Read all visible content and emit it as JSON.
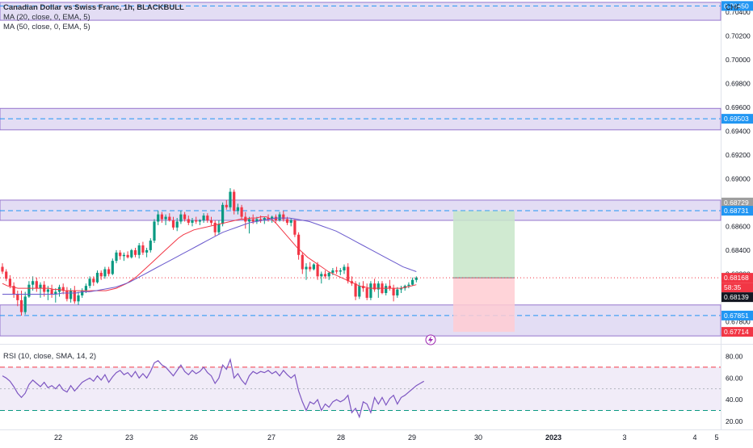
{
  "header": {
    "title": "Canadian Dollar vs Swiss Franc, 1h, BLACKBULL",
    "ma20_label": "MA (20, close, 0, EMA, 5)",
    "ma50_label": "MA (50, close, 0, EMA, 5)",
    "rsi_label": "RSI (10, close, SMA, 14, 2)",
    "currency": "CHF"
  },
  "colors": {
    "up": "#089981",
    "down": "#f23645",
    "ma20": "#f23645",
    "ma50": "#6a5acd",
    "zone_fill": "#d9d1f0",
    "zone_border": "#9575cd",
    "zone_dash": "#2196f3",
    "rsi_line": "#7e57c2",
    "rsi_band": "#ede7f6",
    "profit": "#c8e6c9",
    "loss": "#ffcdd2"
  },
  "price_axis": {
    "ticks": [
      "0.70400",
      "0.70200",
      "0.70000",
      "0.69800",
      "0.69600",
      "0.69400",
      "0.69200",
      "0.69000",
      "0.68800",
      "0.68600",
      "0.68400",
      "0.68200",
      "0.68000",
      "0.67800"
    ]
  },
  "price_badges": [
    {
      "text": "0.70450",
      "color": "#2196f3"
    },
    {
      "text": "0.69503",
      "color": "#2196f3"
    },
    {
      "text": "0.68729",
      "color": "#9e9e9e"
    },
    {
      "text": "0.68731",
      "color": "#2196f3"
    },
    {
      "text": "0.68168",
      "color": "#f23645"
    },
    {
      "text": "58:35",
      "color": "#f23645"
    },
    {
      "text": "0.68139",
      "color": "#131722"
    },
    {
      "text": "0.67851",
      "color": "#2196f3"
    },
    {
      "text": "0.67714",
      "color": "#f23645"
    }
  ],
  "rsi_axis": {
    "ticks": [
      "80.00",
      "60.00",
      "40.00",
      "20.00"
    ]
  },
  "time_axis": {
    "labels": [
      "22",
      "23",
      "26",
      "27",
      "28",
      "29",
      "30",
      "2023",
      "3",
      "4",
      "5"
    ]
  },
  "chart_data": [
    {
      "type": "candlestick",
      "title": "Canadian Dollar vs Swiss Franc, 1h, BLACKBULL",
      "ylim": [
        0.6762,
        0.705
      ],
      "candles": [
        [
          0.6826,
          0.6829,
          0.682,
          0.6822
        ],
        [
          0.6822,
          0.6824,
          0.6814,
          0.6816
        ],
        [
          0.6816,
          0.6819,
          0.6808,
          0.681
        ],
        [
          0.681,
          0.6813,
          0.68,
          0.6803
        ],
        [
          0.6803,
          0.6806,
          0.6793,
          0.6798
        ],
        [
          0.6798,
          0.6806,
          0.6785,
          0.6788
        ],
        [
          0.6788,
          0.6805,
          0.6786,
          0.6801
        ],
        [
          0.6801,
          0.6814,
          0.68,
          0.6811
        ],
        [
          0.6811,
          0.6818,
          0.6806,
          0.6814
        ],
        [
          0.6814,
          0.6817,
          0.6805,
          0.6808
        ],
        [
          0.6808,
          0.6813,
          0.68,
          0.6811
        ],
        [
          0.6811,
          0.6814,
          0.6801,
          0.6805
        ],
        [
          0.6805,
          0.681,
          0.6798,
          0.6807
        ],
        [
          0.6807,
          0.6811,
          0.68,
          0.6803
        ],
        [
          0.6803,
          0.6808,
          0.6796,
          0.6805
        ],
        [
          0.6805,
          0.6811,
          0.6801,
          0.6809
        ],
        [
          0.6809,
          0.6812,
          0.6803,
          0.6806
        ],
        [
          0.6806,
          0.6809,
          0.6797,
          0.6799
        ],
        [
          0.6799,
          0.6808,
          0.6796,
          0.6806
        ],
        [
          0.6806,
          0.681,
          0.6795,
          0.6797
        ],
        [
          0.6797,
          0.6805,
          0.6794,
          0.6802
        ],
        [
          0.6802,
          0.6808,
          0.68,
          0.6806
        ],
        [
          0.6806,
          0.6812,
          0.6804,
          0.681
        ],
        [
          0.681,
          0.6818,
          0.6808,
          0.6816
        ],
        [
          0.6816,
          0.6818,
          0.681,
          0.6813
        ],
        [
          0.6813,
          0.6823,
          0.6812,
          0.6821
        ],
        [
          0.6821,
          0.6823,
          0.6815,
          0.6818
        ],
        [
          0.6818,
          0.6826,
          0.6816,
          0.6824
        ],
        [
          0.6824,
          0.6826,
          0.6818,
          0.682
        ],
        [
          0.682,
          0.6833,
          0.6819,
          0.6831
        ],
        [
          0.6831,
          0.684,
          0.6829,
          0.6838
        ],
        [
          0.6838,
          0.684,
          0.6832,
          0.6835
        ],
        [
          0.6835,
          0.6838,
          0.6831,
          0.6836
        ],
        [
          0.6836,
          0.6839,
          0.6833,
          0.6834
        ],
        [
          0.6834,
          0.6841,
          0.6833,
          0.684
        ],
        [
          0.684,
          0.6842,
          0.6834,
          0.6836
        ],
        [
          0.6836,
          0.6846,
          0.6833,
          0.6844
        ],
        [
          0.6844,
          0.6847,
          0.6836,
          0.6838
        ],
        [
          0.6838,
          0.6842,
          0.6834,
          0.684
        ],
        [
          0.684,
          0.685,
          0.6838,
          0.6848
        ],
        [
          0.6848,
          0.6866,
          0.6846,
          0.6864
        ],
        [
          0.6864,
          0.6873,
          0.6861,
          0.687
        ],
        [
          0.687,
          0.6872,
          0.6863,
          0.6866
        ],
        [
          0.6866,
          0.687,
          0.6861,
          0.6868
        ],
        [
          0.6868,
          0.6871,
          0.6864,
          0.6865
        ],
        [
          0.6865,
          0.6868,
          0.6857,
          0.6859
        ],
        [
          0.6859,
          0.6867,
          0.6856,
          0.6864
        ],
        [
          0.6864,
          0.6873,
          0.6862,
          0.687
        ],
        [
          0.687,
          0.6872,
          0.6864,
          0.6866
        ],
        [
          0.6866,
          0.6869,
          0.6861,
          0.6863
        ],
        [
          0.6863,
          0.6867,
          0.686,
          0.6865
        ],
        [
          0.6865,
          0.6868,
          0.6862,
          0.6864
        ],
        [
          0.6864,
          0.6866,
          0.6861,
          0.6865
        ],
        [
          0.6865,
          0.6871,
          0.6863,
          0.6869
        ],
        [
          0.6869,
          0.6871,
          0.6863,
          0.6865
        ],
        [
          0.6865,
          0.6868,
          0.6861,
          0.6863
        ],
        [
          0.6863,
          0.6865,
          0.6852,
          0.6855
        ],
        [
          0.6855,
          0.6865,
          0.6853,
          0.6862
        ],
        [
          0.6862,
          0.688,
          0.686,
          0.6878
        ],
        [
          0.6878,
          0.6882,
          0.6874,
          0.6876
        ],
        [
          0.6876,
          0.6892,
          0.6874,
          0.6889
        ],
        [
          0.6889,
          0.6891,
          0.687,
          0.6873
        ],
        [
          0.6873,
          0.6879,
          0.687,
          0.6876
        ],
        [
          0.6876,
          0.6878,
          0.6866,
          0.6868
        ],
        [
          0.6868,
          0.6872,
          0.6858,
          0.6864
        ],
        [
          0.6864,
          0.6868,
          0.6854,
          0.6866
        ],
        [
          0.6866,
          0.687,
          0.6862,
          0.6864
        ],
        [
          0.6864,
          0.6868,
          0.6862,
          0.6866
        ],
        [
          0.6866,
          0.6869,
          0.6863,
          0.6865
        ],
        [
          0.6865,
          0.6868,
          0.6862,
          0.6867
        ],
        [
          0.6867,
          0.687,
          0.6864,
          0.6866
        ],
        [
          0.6866,
          0.6869,
          0.6863,
          0.6868
        ],
        [
          0.6868,
          0.687,
          0.6863,
          0.6865
        ],
        [
          0.6865,
          0.6872,
          0.6864,
          0.687
        ],
        [
          0.687,
          0.6873,
          0.6864,
          0.6866
        ],
        [
          0.6866,
          0.6868,
          0.6861,
          0.6863
        ],
        [
          0.6863,
          0.6867,
          0.686,
          0.6865
        ],
        [
          0.6865,
          0.6866,
          0.6851,
          0.6853
        ],
        [
          0.6853,
          0.6855,
          0.6832,
          0.6836
        ],
        [
          0.6836,
          0.6838,
          0.682,
          0.6824
        ],
        [
          0.6824,
          0.6829,
          0.6815,
          0.6826
        ],
        [
          0.6826,
          0.683,
          0.6822,
          0.6824
        ],
        [
          0.6824,
          0.6829,
          0.6823,
          0.6828
        ],
        [
          0.6828,
          0.683,
          0.6815,
          0.6818
        ],
        [
          0.6818,
          0.6822,
          0.6812,
          0.682
        ],
        [
          0.682,
          0.6823,
          0.6816,
          0.6818
        ],
        [
          0.6818,
          0.6822,
          0.6815,
          0.6821
        ],
        [
          0.6821,
          0.6825,
          0.6819,
          0.6823
        ],
        [
          0.6823,
          0.6826,
          0.682,
          0.6822
        ],
        [
          0.6822,
          0.6825,
          0.6819,
          0.6823
        ],
        [
          0.6823,
          0.6828,
          0.682,
          0.6826
        ],
        [
          0.6826,
          0.6829,
          0.6812,
          0.6814
        ],
        [
          0.6814,
          0.6818,
          0.681,
          0.6812
        ],
        [
          0.6812,
          0.6814,
          0.6798,
          0.6801
        ],
        [
          0.6801,
          0.6813,
          0.6799,
          0.681
        ],
        [
          0.681,
          0.6814,
          0.6805,
          0.6808
        ],
        [
          0.6808,
          0.6812,
          0.6798,
          0.68
        ],
        [
          0.68,
          0.6814,
          0.6798,
          0.6812
        ],
        [
          0.6812,
          0.6816,
          0.6805,
          0.6807
        ],
        [
          0.6807,
          0.6814,
          0.68,
          0.6812
        ],
        [
          0.6812,
          0.6814,
          0.6803,
          0.6804
        ],
        [
          0.6804,
          0.6812,
          0.6802,
          0.681
        ],
        [
          0.681,
          0.6815,
          0.6806,
          0.6808
        ],
        [
          0.6808,
          0.6811,
          0.6797,
          0.6802
        ],
        [
          0.6802,
          0.6809,
          0.68,
          0.6807
        ],
        [
          0.6807,
          0.681,
          0.6804,
          0.6808
        ],
        [
          0.6808,
          0.6811,
          0.6806,
          0.681
        ],
        [
          0.681,
          0.6813,
          0.6808,
          0.6811
        ],
        [
          0.6811,
          0.6817,
          0.681,
          0.6815
        ],
        [
          0.6815,
          0.6818,
          0.6813,
          0.6817
        ]
      ],
      "ma20": [
        0.6812,
        0.681,
        0.6809,
        0.6808,
        0.6808,
        0.6808,
        0.6808,
        0.6808,
        0.6808,
        0.6808,
        0.6807,
        0.6807,
        0.6806,
        0.6806,
        0.6806,
        0.6806,
        0.6806,
        0.6806,
        0.6806,
        0.6806,
        0.6806,
        0.6807,
        0.6808,
        0.681,
        0.6812,
        0.6815,
        0.6818,
        0.6822,
        0.6826,
        0.683,
        0.6834,
        0.6838,
        0.6842,
        0.6846,
        0.685,
        0.6853,
        0.6855,
        0.6857,
        0.6858,
        0.6859,
        0.686,
        0.6861,
        0.6862,
        0.6863,
        0.6864,
        0.6865,
        0.6866,
        0.6866,
        0.6867,
        0.6867,
        0.6868,
        0.6868,
        0.6866,
        0.6862,
        0.6857,
        0.6852,
        0.6847,
        0.6842,
        0.6838,
        0.6834,
        0.6831,
        0.6828,
        0.6825,
        0.6822,
        0.682,
        0.6818,
        0.6816,
        0.6814,
        0.6812,
        0.681,
        0.6809,
        0.6808,
        0.6808,
        0.6808,
        0.6808,
        0.6808,
        0.6808,
        0.6808,
        0.6809,
        0.681,
        0.6811
      ],
      "ma50": [
        0.6803,
        0.6803,
        0.6803,
        0.6803,
        0.6803,
        0.6803,
        0.6803,
        0.6803,
        0.6803,
        0.6804,
        0.6804,
        0.6804,
        0.6805,
        0.6805,
        0.6806,
        0.6807,
        0.6808,
        0.6809,
        0.6811,
        0.6813,
        0.6816,
        0.6819,
        0.6822,
        0.6825,
        0.6828,
        0.6831,
        0.6834,
        0.6837,
        0.684,
        0.6843,
        0.6846,
        0.6849,
        0.6852,
        0.6855,
        0.6857,
        0.6859,
        0.6861,
        0.6863,
        0.6864,
        0.6865,
        0.6866,
        0.6867,
        0.6867,
        0.6867,
        0.6866,
        0.6865,
        0.6864,
        0.6862,
        0.686,
        0.6858,
        0.6856,
        0.6853,
        0.685,
        0.6847,
        0.6844,
        0.6841,
        0.6838,
        0.6835,
        0.6832,
        0.6829,
        0.6826,
        0.6824,
        0.6822
      ],
      "support_resistance_zones": [
        {
          "top": 0.7048,
          "bottom": 0.7033,
          "level": 0.7045
        },
        {
          "top": 0.6959,
          "bottom": 0.6941,
          "level": 0.69503
        },
        {
          "top": 0.6882,
          "bottom": 0.6865,
          "level": 0.68731
        },
        {
          "top": 0.6794,
          "bottom": 0.6768,
          "level": 0.67851
        }
      ],
      "position": {
        "entry": 0.68168,
        "target": 0.68729,
        "stop": 0.67714
      },
      "current_price": 0.68168
    },
    {
      "type": "line",
      "title": "RSI (10, close, SMA, 14, 2)",
      "ylim": [
        14,
        90
      ],
      "upper_band": 70,
      "lower_band": 30,
      "middle": 50,
      "values": [
        62,
        60,
        57,
        52,
        46,
        42,
        46,
        54,
        58,
        55,
        52,
        56,
        51,
        53,
        50,
        54,
        49,
        47,
        53,
        48,
        52,
        56,
        58,
        60,
        57,
        62,
        58,
        63,
        56,
        61,
        65,
        67,
        63,
        65,
        61,
        66,
        60,
        64,
        60,
        66,
        74,
        76,
        72,
        70,
        66,
        62,
        67,
        72,
        66,
        63,
        67,
        64,
        66,
        70,
        65,
        62,
        55,
        60,
        72,
        68,
        77,
        60,
        64,
        58,
        54,
        62,
        66,
        64,
        66,
        65,
        67,
        64,
        66,
        62,
        67,
        63,
        60,
        63,
        48,
        38,
        30,
        38,
        36,
        40,
        30,
        36,
        33,
        38,
        40,
        38,
        40,
        44,
        28,
        32,
        24,
        38,
        36,
        28,
        42,
        36,
        42,
        35,
        41,
        44,
        36,
        42,
        44,
        47,
        50,
        53,
        55,
        57
      ]
    }
  ]
}
